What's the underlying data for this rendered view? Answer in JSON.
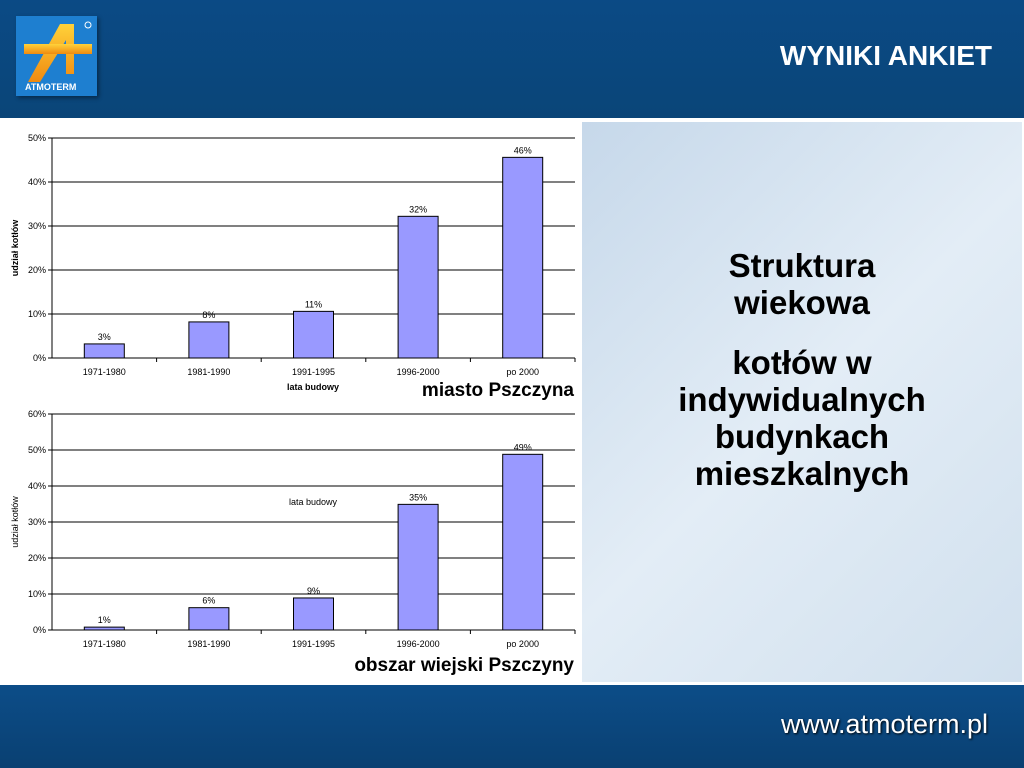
{
  "header": {
    "title": "WYNIKI ANKIET",
    "logo_text": "ATMOTERM"
  },
  "right_panel": {
    "line1": "Struktura wiekowa",
    "line2": "kotłów w indywidualnych budynkach mieszkalnych"
  },
  "footer": {
    "url": "www.atmoterm.pl"
  },
  "colors": {
    "bar": "#9999ff",
    "header": "#0b4a85"
  },
  "chart_data": [
    {
      "type": "bar",
      "title": "",
      "subtitle": "miasto Pszczyna",
      "xlabel": "lata budowy",
      "ylabel": "udział kotłów",
      "categories": [
        "1971-1980",
        "1981-1990",
        "1991-1995",
        "1996-2000",
        "po 2000"
      ],
      "values": [
        3.2,
        8.2,
        10.6,
        32.2,
        45.6
      ],
      "data_labels": [
        "3%",
        "8%",
        "11%",
        "32%",
        "46%"
      ],
      "yticks": [
        "0%",
        "10%",
        "20%",
        "30%",
        "40%",
        "50%"
      ],
      "ylim": [
        0,
        50
      ],
      "grid": true
    },
    {
      "type": "bar",
      "title": "",
      "subtitle": "obszar wiejski Pszczyny",
      "xlabel": "lata budowy",
      "ylabel": "udział kotłów",
      "categories": [
        "1971-1980",
        "1981-1990",
        "1991-1995",
        "1996-2000",
        "po 2000"
      ],
      "values": [
        0.8,
        6.2,
        8.9,
        34.9,
        48.8
      ],
      "data_labels": [
        "1%",
        "6%",
        "9%",
        "35%",
        "49%"
      ],
      "yticks": [
        "0%",
        "10%",
        "20%",
        "30%",
        "40%",
        "50%",
        "60%"
      ],
      "ylim": [
        0,
        60
      ],
      "grid": true
    }
  ]
}
